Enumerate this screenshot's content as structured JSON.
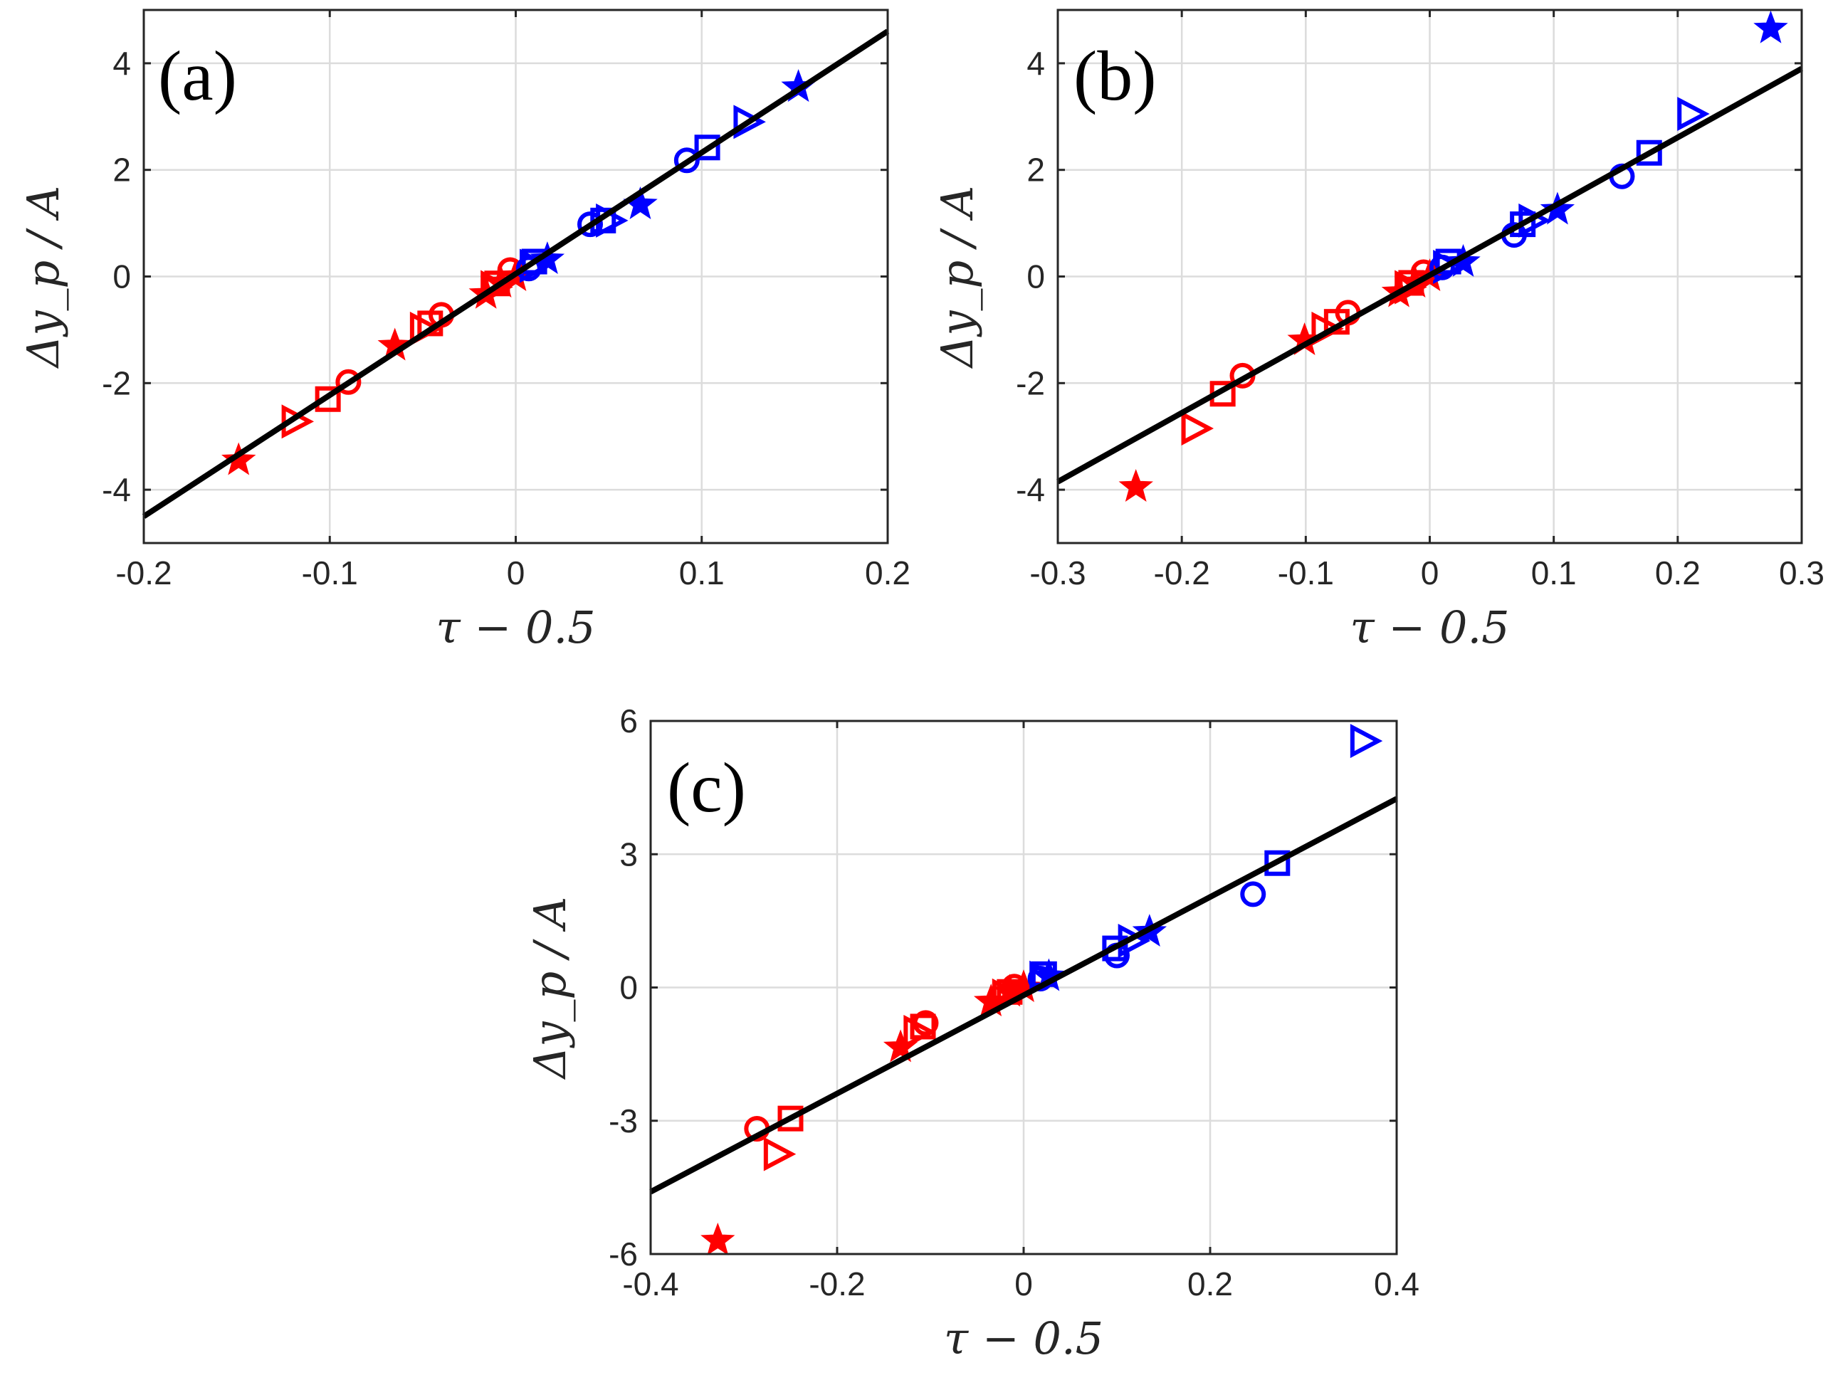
{
  "colors": {
    "red": "#ff0000",
    "blue": "#0000ff",
    "fit": "#000000",
    "grid": "#dcdcdc",
    "axis": "#262626"
  },
  "chart_data": [
    {
      "type": "scatter",
      "panel_label": "(a)",
      "xlabel": "τ − 0.5",
      "ylabel": "Δy_p / A",
      "xlim": [
        -0.2,
        0.2
      ],
      "ylim": [
        -5,
        5
      ],
      "xticks": [
        -0.2,
        -0.1,
        0,
        0.1,
        0.2
      ],
      "xtick_labels": [
        "-0.2",
        "-0.1",
        "0",
        "0.1",
        "0.2"
      ],
      "yticks": [
        -4,
        -2,
        0,
        2,
        4
      ],
      "ytick_labels": [
        "-4",
        "-2",
        "0",
        "2",
        "4"
      ],
      "grid": true,
      "fit_line": {
        "x": [
          -0.2,
          0.2
        ],
        "y": [
          -4.5,
          4.6
        ]
      },
      "series": [
        {
          "name": "star",
          "marker": "star",
          "points": [
            {
              "x": -0.149,
              "y": -3.45,
              "c": "red"
            },
            {
              "x": -0.065,
              "y": -1.3,
              "c": "red"
            },
            {
              "x": -0.016,
              "y": -0.33,
              "c": "red"
            },
            {
              "x": -0.008,
              "y": -0.12,
              "c": "red"
            },
            {
              "x": 0.0,
              "y": 0.0,
              "c": "red"
            },
            {
              "x": 0.017,
              "y": 0.32,
              "c": "blue"
            },
            {
              "x": 0.067,
              "y": 1.35,
              "c": "blue"
            },
            {
              "x": 0.152,
              "y": 3.55,
              "c": "blue"
            }
          ]
        },
        {
          "name": "triangle",
          "marker": "triangle-right",
          "points": [
            {
              "x": -0.119,
              "y": -2.72,
              "c": "red"
            },
            {
              "x": -0.05,
              "y": -0.98,
              "c": "red"
            },
            {
              "x": -0.012,
              "y": -0.2,
              "c": "red"
            },
            {
              "x": 0.009,
              "y": 0.2,
              "c": "blue"
            },
            {
              "x": 0.05,
              "y": 1.05,
              "c": "blue"
            },
            {
              "x": 0.124,
              "y": 2.9,
              "c": "blue"
            }
          ]
        },
        {
          "name": "square",
          "marker": "square",
          "points": [
            {
              "x": -0.101,
              "y": -2.3,
              "c": "red"
            },
            {
              "x": -0.046,
              "y": -0.88,
              "c": "red"
            },
            {
              "x": -0.01,
              "y": -0.13,
              "c": "red"
            },
            {
              "x": 0.01,
              "y": 0.28,
              "c": "blue"
            },
            {
              "x": 0.047,
              "y": 1.05,
              "c": "blue"
            },
            {
              "x": 0.103,
              "y": 2.42,
              "c": "blue"
            }
          ]
        },
        {
          "name": "circle",
          "marker": "circle",
          "points": [
            {
              "x": -0.09,
              "y": -1.98,
              "c": "red"
            },
            {
              "x": -0.04,
              "y": -0.72,
              "c": "red"
            },
            {
              "x": -0.003,
              "y": 0.12,
              "c": "red"
            },
            {
              "x": 0.007,
              "y": 0.15,
              "c": "blue"
            },
            {
              "x": 0.04,
              "y": 0.98,
              "c": "blue"
            },
            {
              "x": 0.092,
              "y": 2.18,
              "c": "blue"
            }
          ]
        }
      ]
    },
    {
      "type": "scatter",
      "panel_label": "(b)",
      "xlabel": "τ − 0.5",
      "ylabel": "Δy_p / A",
      "xlim": [
        -0.3,
        0.3
      ],
      "ylim": [
        -5,
        5
      ],
      "xticks": [
        -0.3,
        -0.2,
        -0.1,
        0,
        0.1,
        0.2,
        0.3
      ],
      "xtick_labels": [
        "-0.3",
        "-0.2",
        "-0.1",
        "0",
        "0.1",
        "0.2",
        "0.3"
      ],
      "yticks": [
        -4,
        -2,
        0,
        2,
        4
      ],
      "ytick_labels": [
        "-4",
        "-2",
        "0",
        "2",
        "4"
      ],
      "grid": true,
      "fit_line": {
        "x": [
          -0.3,
          0.3
        ],
        "y": [
          -3.85,
          3.9
        ]
      },
      "series": [
        {
          "name": "star",
          "marker": "star",
          "points": [
            {
              "x": -0.237,
              "y": -3.95,
              "c": "red"
            },
            {
              "x": -0.101,
              "y": -1.2,
              "c": "red"
            },
            {
              "x": -0.025,
              "y": -0.3,
              "c": "red"
            },
            {
              "x": -0.012,
              "y": -0.12,
              "c": "red"
            },
            {
              "x": 0.0,
              "y": 0.0,
              "c": "red"
            },
            {
              "x": 0.027,
              "y": 0.27,
              "c": "blue"
            },
            {
              "x": 0.103,
              "y": 1.25,
              "c": "blue"
            },
            {
              "x": 0.275,
              "y": 4.65,
              "c": "blue"
            }
          ]
        },
        {
          "name": "triangle",
          "marker": "triangle-right",
          "points": [
            {
              "x": -0.19,
              "y": -2.85,
              "c": "red"
            },
            {
              "x": -0.085,
              "y": -0.98,
              "c": "red"
            },
            {
              "x": -0.018,
              "y": -0.2,
              "c": "red"
            },
            {
              "x": 0.013,
              "y": 0.18,
              "c": "blue"
            },
            {
              "x": 0.082,
              "y": 1.05,
              "c": "blue"
            },
            {
              "x": 0.21,
              "y": 3.05,
              "c": "blue"
            }
          ]
        },
        {
          "name": "square",
          "marker": "square",
          "points": [
            {
              "x": -0.167,
              "y": -2.2,
              "c": "red"
            },
            {
              "x": -0.075,
              "y": -0.85,
              "c": "red"
            },
            {
              "x": -0.015,
              "y": -0.12,
              "c": "red"
            },
            {
              "x": 0.015,
              "y": 0.28,
              "c": "blue"
            },
            {
              "x": 0.075,
              "y": 0.98,
              "c": "blue"
            },
            {
              "x": 0.177,
              "y": 2.32,
              "c": "blue"
            }
          ]
        },
        {
          "name": "circle",
          "marker": "circle",
          "points": [
            {
              "x": -0.151,
              "y": -1.86,
              "c": "red"
            },
            {
              "x": -0.066,
              "y": -0.68,
              "c": "red"
            },
            {
              "x": -0.005,
              "y": 0.08,
              "c": "red"
            },
            {
              "x": 0.01,
              "y": 0.17,
              "c": "blue"
            },
            {
              "x": 0.068,
              "y": 0.78,
              "c": "blue"
            },
            {
              "x": 0.155,
              "y": 1.88,
              "c": "blue"
            }
          ]
        }
      ]
    },
    {
      "type": "scatter",
      "panel_label": "(c)",
      "xlabel": "τ − 0.5",
      "ylabel": "Δy_p / A",
      "xlim": [
        -0.4,
        0.4
      ],
      "ylim": [
        -6,
        6
      ],
      "xticks": [
        -0.4,
        -0.2,
        0,
        0.2,
        0.4
      ],
      "xtick_labels": [
        "-0.4",
        "-0.2",
        "0",
        "0.2",
        "0.4"
      ],
      "yticks": [
        -6,
        -3,
        0,
        3,
        6
      ],
      "ytick_labels": [
        "-6",
        "-3",
        "0",
        "3",
        "6"
      ],
      "grid": true,
      "fit_line": {
        "x": [
          -0.4,
          0.4
        ],
        "y": [
          -4.6,
          4.25
        ]
      },
      "series": [
        {
          "name": "star",
          "marker": "star",
          "points": [
            {
              "x": -0.328,
              "y": -5.7,
              "c": "red"
            },
            {
              "x": -0.132,
              "y": -1.35,
              "c": "red"
            },
            {
              "x": -0.035,
              "y": -0.32,
              "c": "red"
            },
            {
              "x": -0.015,
              "y": -0.1,
              "c": "red"
            },
            {
              "x": 0.0,
              "y": 0.0,
              "c": "red"
            },
            {
              "x": 0.027,
              "y": 0.25,
              "c": "blue"
            },
            {
              "x": 0.135,
              "y": 1.25,
              "c": "blue"
            }
          ]
        },
        {
          "name": "triangle",
          "marker": "triangle-right",
          "points": [
            {
              "x": -0.265,
              "y": -3.75,
              "c": "red"
            },
            {
              "x": -0.115,
              "y": -1.0,
              "c": "red"
            },
            {
              "x": -0.02,
              "y": -0.18,
              "c": "red"
            },
            {
              "x": 0.02,
              "y": 0.22,
              "c": "blue"
            },
            {
              "x": 0.115,
              "y": 1.05,
              "c": "blue"
            },
            {
              "x": 0.364,
              "y": 5.55,
              "c": "blue"
            }
          ]
        },
        {
          "name": "square",
          "marker": "square",
          "points": [
            {
              "x": -0.25,
              "y": -2.95,
              "c": "red"
            },
            {
              "x": -0.108,
              "y": -0.88,
              "c": "red"
            },
            {
              "x": -0.015,
              "y": -0.1,
              "c": "red"
            },
            {
              "x": 0.022,
              "y": 0.3,
              "c": "blue"
            },
            {
              "x": 0.098,
              "y": 0.88,
              "c": "blue"
            },
            {
              "x": 0.272,
              "y": 2.8,
              "c": "blue"
            }
          ]
        },
        {
          "name": "circle",
          "marker": "circle",
          "points": [
            {
              "x": -0.286,
              "y": -3.18,
              "c": "red"
            },
            {
              "x": -0.105,
              "y": -0.8,
              "c": "red"
            },
            {
              "x": -0.01,
              "y": 0.02,
              "c": "red"
            },
            {
              "x": 0.018,
              "y": 0.2,
              "c": "blue"
            },
            {
              "x": 0.1,
              "y": 0.72,
              "c": "blue"
            },
            {
              "x": 0.246,
              "y": 2.1,
              "c": "blue"
            }
          ]
        }
      ]
    }
  ]
}
